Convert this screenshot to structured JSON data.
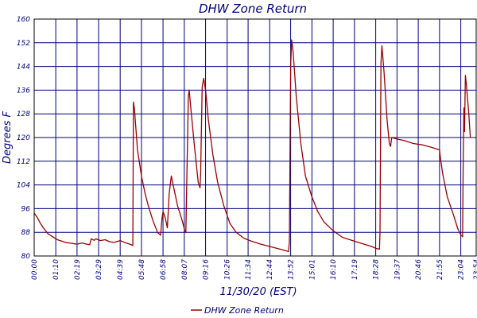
{
  "chart_data": {
    "type": "line",
    "title": "DHW Zone Return",
    "xlabel": "11/30/20 (EST)",
    "ylabel": "Degrees F",
    "ylim": [
      80,
      160
    ],
    "yticks": [
      80,
      88,
      96,
      104,
      112,
      120,
      128,
      136,
      144,
      152,
      160
    ],
    "x_unit": "time (hh:mm)",
    "xlim": [
      "00:00",
      "23:54"
    ],
    "xticks": [
      "00:00",
      "01:10",
      "02:19",
      "03:29",
      "04:39",
      "05:48",
      "06:58",
      "08:07",
      "09:16",
      "10:26",
      "11:34",
      "12:44",
      "13:52",
      "15:01",
      "16:10",
      "17:19",
      "18:28",
      "19:37",
      "20:46",
      "21:55",
      "23:04",
      "23:54"
    ],
    "grid": true,
    "legend_position": "bottom",
    "series": [
      {
        "name": "DHW Zone Return",
        "color": "#990000",
        "points": [
          [
            "00:00",
            94.5
          ],
          [
            "00:10",
            93
          ],
          [
            "00:20",
            91
          ],
          [
            "00:30",
            89.5
          ],
          [
            "00:45",
            87.5
          ],
          [
            "01:00",
            86.5
          ],
          [
            "01:15",
            85.5
          ],
          [
            "01:30",
            85
          ],
          [
            "01:45",
            84.5
          ],
          [
            "02:00",
            84.3
          ],
          [
            "02:19",
            84
          ],
          [
            "02:35",
            84.4
          ],
          [
            "02:50",
            84
          ],
          [
            "03:00",
            83.8
          ],
          [
            "03:05",
            85.8
          ],
          [
            "03:15",
            85.3
          ],
          [
            "03:20",
            85.8
          ],
          [
            "03:35",
            85.2
          ],
          [
            "03:50",
            85.5
          ],
          [
            "04:05",
            84.8
          ],
          [
            "04:20",
            84.6
          ],
          [
            "04:39",
            85.2
          ],
          [
            "04:55",
            84.5
          ],
          [
            "05:15",
            83.8
          ],
          [
            "05:20",
            83.5
          ],
          [
            "05:22",
            132
          ],
          [
            "05:25",
            130
          ],
          [
            "05:35",
            116
          ],
          [
            "05:48",
            107
          ],
          [
            "06:00",
            101
          ],
          [
            "06:10",
            97
          ],
          [
            "06:25",
            92
          ],
          [
            "06:40",
            88
          ],
          [
            "06:50",
            87
          ],
          [
            "06:55",
            93
          ],
          [
            "06:58",
            95
          ],
          [
            "07:05",
            93
          ],
          [
            "07:12",
            89.5
          ],
          [
            "07:18",
            101
          ],
          [
            "07:25",
            107
          ],
          [
            "07:35",
            102
          ],
          [
            "07:45",
            97
          ],
          [
            "08:00",
            92
          ],
          [
            "08:10",
            88
          ],
          [
            "08:12",
            88
          ],
          [
            "08:20",
            134
          ],
          [
            "08:23",
            136
          ],
          [
            "08:30",
            128
          ],
          [
            "08:40",
            117
          ],
          [
            "08:52",
            105
          ],
          [
            "08:58",
            103
          ],
          [
            "09:00",
            108
          ],
          [
            "09:05",
            137
          ],
          [
            "09:10",
            140
          ],
          [
            "09:16",
            136
          ],
          [
            "09:25",
            126
          ],
          [
            "09:40",
            114
          ],
          [
            "09:55",
            105
          ],
          [
            "10:15",
            97
          ],
          [
            "10:35",
            91
          ],
          [
            "10:55",
            88
          ],
          [
            "11:20",
            86
          ],
          [
            "11:45",
            85
          ],
          [
            "12:15",
            84
          ],
          [
            "12:45",
            83.2
          ],
          [
            "13:15",
            82.4
          ],
          [
            "13:35",
            81.8
          ],
          [
            "13:45",
            81.5
          ],
          [
            "13:48",
            85
          ],
          [
            "13:52",
            144
          ],
          [
            "13:55",
            153
          ],
          [
            "14:00",
            149
          ],
          [
            "14:10",
            134
          ],
          [
            "14:25",
            118
          ],
          [
            "14:40",
            107
          ],
          [
            "15:01",
            100
          ],
          [
            "15:20",
            95
          ],
          [
            "15:40",
            91.5
          ],
          [
            "16:10",
            88.5
          ],
          [
            "16:40",
            86.3
          ],
          [
            "17:19",
            85
          ],
          [
            "17:50",
            84
          ],
          [
            "18:15",
            83.2
          ],
          [
            "18:30",
            82.5
          ],
          [
            "18:40",
            82.3
          ],
          [
            "18:42",
            88
          ],
          [
            "18:45",
            145
          ],
          [
            "18:48",
            151
          ],
          [
            "18:55",
            142
          ],
          [
            "19:05",
            126
          ],
          [
            "19:12",
            118
          ],
          [
            "19:16",
            117
          ],
          [
            "19:20",
            120
          ],
          [
            "19:37",
            119.5
          ],
          [
            "20:00",
            119
          ],
          [
            "20:30",
            118
          ],
          [
            "21:00",
            117.5
          ],
          [
            "21:25",
            116.8
          ],
          [
            "21:50",
            116
          ],
          [
            "21:55",
            115.8
          ],
          [
            "21:57",
            114
          ],
          [
            "22:05",
            108
          ],
          [
            "22:20",
            100
          ],
          [
            "22:40",
            94
          ],
          [
            "22:55",
            89
          ],
          [
            "23:05",
            87
          ],
          [
            "23:10",
            86.5
          ],
          [
            "23:12",
            113
          ],
          [
            "23:14",
            130
          ],
          [
            "23:16",
            122
          ],
          [
            "23:19",
            141
          ],
          [
            "23:22",
            138
          ],
          [
            "23:30",
            128
          ],
          [
            "23:35",
            120
          ]
        ]
      }
    ]
  }
}
